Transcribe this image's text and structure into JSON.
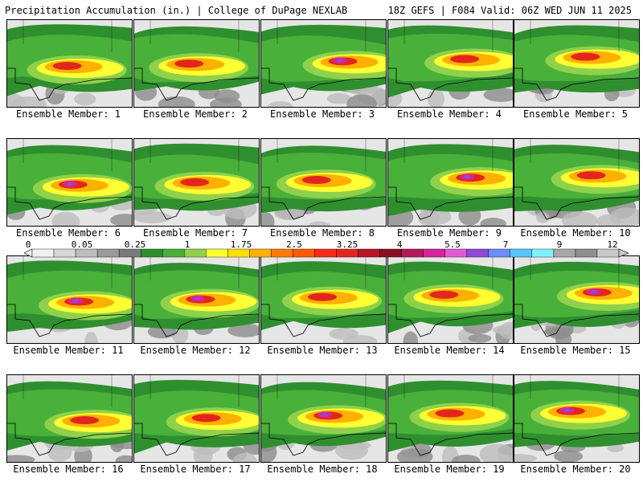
{
  "header": {
    "left": "Precipitation Accumulation (in.) | College of DuPage NEXLAB",
    "right": "18Z GEFS | F084 Valid: 06Z WED JUN 11 2025"
  },
  "colors": {
    "gray_light": "#e6e6e6",
    "gray_mid": "#bdbdbd",
    "gray_dark": "#8c8c8c",
    "green_dark": "#2f8f2f",
    "green": "#49b03a",
    "green_light": "#8fd14a",
    "yellow": "#ffff33",
    "orange": "#ffb000",
    "orange_dark": "#ff7a00",
    "red": "#e3261c",
    "dark_red": "#a3142a",
    "magenta": "#d6249b",
    "purple": "#8e4bd6",
    "cyan": "#74d6ff"
  },
  "colorbar": {
    "labels": [
      "0",
      "0.05",
      "0.25",
      "1",
      "1.75",
      "2.5",
      "3.25",
      "4",
      "5.5",
      "7",
      "9",
      "12"
    ],
    "swatches": [
      "#f0f0f0",
      "#d8d8d8",
      "#bdbdbd",
      "#9a9a9a",
      "#7a7a7a",
      "#2f8f2f",
      "#49b03a",
      "#8fd14a",
      "#ffff33",
      "#ffe000",
      "#ffb000",
      "#ff7a00",
      "#ff5a00",
      "#ff2a1a",
      "#e3261c",
      "#b61626",
      "#8a0f22",
      "#b31a5e",
      "#d6249b",
      "#e35ad6",
      "#8e4bd6",
      "#6c8cff",
      "#55c6ff",
      "#7ef3ff",
      "#a8a8a8",
      "#8f8f8f",
      "#c8c8c8"
    ]
  },
  "members": [
    {
      "label": "Ensemble Member: 1"
    },
    {
      "label": "Ensemble Member: 2"
    },
    {
      "label": "Ensemble Member: 3"
    },
    {
      "label": "Ensemble Member: 4"
    },
    {
      "label": "Ensemble Member: 5"
    },
    {
      "label": "Ensemble Member: 6"
    },
    {
      "label": "Ensemble Member: 7"
    },
    {
      "label": "Ensemble Member: 8"
    },
    {
      "label": "Ensemble Member: 9"
    },
    {
      "label": "Ensemble Member: 10"
    },
    {
      "label": "Ensemble Member: 11"
    },
    {
      "label": "Ensemble Member: 12"
    },
    {
      "label": "Ensemble Member: 13"
    },
    {
      "label": "Ensemble Member: 14"
    },
    {
      "label": "Ensemble Member: 15"
    },
    {
      "label": "Ensemble Member: 16"
    },
    {
      "label": "Ensemble Member: 17"
    },
    {
      "label": "Ensemble Member: 18"
    },
    {
      "label": "Ensemble Member: 19"
    },
    {
      "label": "Ensemble Member: 20"
    }
  ]
}
